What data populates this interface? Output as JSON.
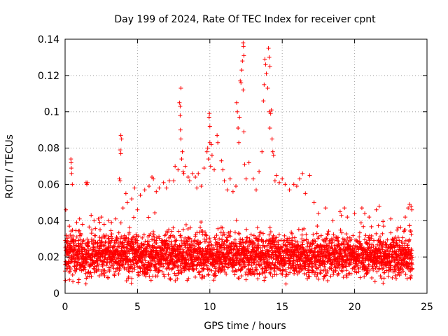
{
  "chart_data": {
    "type": "scatter",
    "title": "Day 199 of 2024, Rate Of TEC Index for receiver cpnt",
    "xlabel": "GPS time / hours",
    "ylabel": "ROTI / TECUs",
    "xlim": [
      0,
      25
    ],
    "ylim": [
      0,
      0.14
    ],
    "grid": true,
    "marker": "+",
    "xticks": [
      "0",
      "5",
      "10",
      "15",
      "20",
      "25"
    ],
    "yticks": [
      "0",
      "0.02",
      "0.04",
      "0.06",
      "0.08",
      "0.1",
      "0.12",
      "0.14"
    ],
    "series": [
      {
        "name": "ROTI",
        "color": "#ff0000",
        "points": [
          [
            0.05,
            0.046
          ],
          [
            0.15,
            0.029
          ],
          [
            0.2,
            0.031
          ],
          [
            0.4,
            0.074
          ],
          [
            0.42,
            0.072
          ],
          [
            0.43,
            0.069
          ],
          [
            0.45,
            0.066
          ],
          [
            0.5,
            0.06
          ],
          [
            0.8,
            0.039
          ],
          [
            1.0,
            0.041
          ],
          [
            1.2,
            0.038
          ],
          [
            1.45,
            0.061
          ],
          [
            1.5,
            0.06
          ],
          [
            1.55,
            0.061
          ],
          [
            1.8,
            0.043
          ],
          [
            2.0,
            0.04
          ],
          [
            2.3,
            0.041
          ],
          [
            2.5,
            0.042
          ],
          [
            2.7,
            0.038
          ],
          [
            3.0,
            0.04
          ],
          [
            3.2,
            0.039
          ],
          [
            3.5,
            0.041
          ],
          [
            3.75,
            0.063
          ],
          [
            3.8,
            0.062
          ],
          [
            3.85,
            0.087
          ],
          [
            3.9,
            0.085
          ],
          [
            3.8,
            0.079
          ],
          [
            3.85,
            0.077
          ],
          [
            4.0,
            0.047
          ],
          [
            4.2,
            0.055
          ],
          [
            4.3,
            0.05
          ],
          [
            4.6,
            0.052
          ],
          [
            4.8,
            0.058
          ],
          [
            5.0,
            0.046
          ],
          [
            5.2,
            0.054
          ],
          [
            5.5,
            0.057
          ],
          [
            5.8,
            0.059
          ],
          [
            6.0,
            0.064
          ],
          [
            6.1,
            0.063
          ],
          [
            6.3,
            0.056
          ],
          [
            6.5,
            0.058
          ],
          [
            6.8,
            0.061
          ],
          [
            7.0,
            0.058
          ],
          [
            7.2,
            0.062
          ],
          [
            7.5,
            0.062
          ],
          [
            7.6,
            0.07
          ],
          [
            7.8,
            0.068
          ],
          [
            7.9,
            0.105
          ],
          [
            7.95,
            0.103
          ],
          [
            7.95,
            0.098
          ],
          [
            8.0,
            0.113
          ],
          [
            7.97,
            0.09
          ],
          [
            8.0,
            0.085
          ],
          [
            8.05,
            0.074
          ],
          [
            8.1,
            0.078
          ],
          [
            8.15,
            0.067
          ],
          [
            8.2,
            0.066
          ],
          [
            8.3,
            0.07
          ],
          [
            8.5,
            0.064
          ],
          [
            8.6,
            0.062
          ],
          [
            8.8,
            0.066
          ],
          [
            9.0,
            0.064
          ],
          [
            9.1,
            0.058
          ],
          [
            9.2,
            0.066
          ],
          [
            9.4,
            0.059
          ],
          [
            9.6,
            0.069
          ],
          [
            9.8,
            0.078
          ],
          [
            9.85,
            0.08
          ],
          [
            9.9,
            0.074
          ],
          [
            9.95,
            0.097
          ],
          [
            9.97,
            0.099
          ],
          [
            10.0,
            0.092
          ],
          [
            10.0,
            0.083
          ],
          [
            10.05,
            0.07
          ],
          [
            10.1,
            0.082
          ],
          [
            10.15,
            0.076
          ],
          [
            10.3,
            0.068
          ],
          [
            10.5,
            0.087
          ],
          [
            10.55,
            0.083
          ],
          [
            10.8,
            0.073
          ],
          [
            10.9,
            0.068
          ],
          [
            11.0,
            0.062
          ],
          [
            11.2,
            0.057
          ],
          [
            11.4,
            0.063
          ],
          [
            11.6,
            0.056
          ],
          [
            11.8,
            0.059
          ],
          [
            11.85,
            0.105
          ],
          [
            11.9,
            0.1
          ],
          [
            11.95,
            0.091
          ],
          [
            12.0,
            0.083
          ],
          [
            12.05,
            0.097
          ],
          [
            12.1,
            0.117
          ],
          [
            12.15,
            0.116
          ],
          [
            12.2,
            0.123
          ],
          [
            12.25,
            0.128
          ],
          [
            12.3,
            0.138
          ],
          [
            12.32,
            0.136
          ],
          [
            12.35,
            0.131
          ],
          [
            12.3,
            0.112
          ],
          [
            12.35,
            0.089
          ],
          [
            12.4,
            0.071
          ],
          [
            12.5,
            0.063
          ],
          [
            12.7,
            0.072
          ],
          [
            13.0,
            0.063
          ],
          [
            13.2,
            0.057
          ],
          [
            13.4,
            0.067
          ],
          [
            13.6,
            0.078
          ],
          [
            13.7,
            0.106
          ],
          [
            13.75,
            0.115
          ],
          [
            13.8,
            0.129
          ],
          [
            13.9,
            0.121
          ],
          [
            13.85,
            0.126
          ],
          [
            14.0,
            0.113
          ],
          [
            14.05,
            0.135
          ],
          [
            14.1,
            0.13
          ],
          [
            14.15,
            0.125
          ],
          [
            14.1,
            0.1
          ],
          [
            14.15,
            0.091
          ],
          [
            14.2,
            0.099
          ],
          [
            14.25,
            0.101
          ],
          [
            14.3,
            0.085
          ],
          [
            14.35,
            0.078
          ],
          [
            14.4,
            0.076
          ],
          [
            14.5,
            0.062
          ],
          [
            14.6,
            0.065
          ],
          [
            14.8,
            0.061
          ],
          [
            15.0,
            0.063
          ],
          [
            15.2,
            0.06
          ],
          [
            15.5,
            0.057
          ],
          [
            15.8,
            0.06
          ],
          [
            16.0,
            0.059
          ],
          [
            16.2,
            0.063
          ],
          [
            16.4,
            0.066
          ],
          [
            16.6,
            0.055
          ],
          [
            16.9,
            0.065
          ],
          [
            17.2,
            0.05
          ],
          [
            17.5,
            0.044
          ],
          [
            18.0,
            0.047
          ],
          [
            18.5,
            0.04
          ],
          [
            19.0,
            0.045
          ],
          [
            19.3,
            0.047
          ],
          [
            19.5,
            0.042
          ],
          [
            20.0,
            0.044
          ],
          [
            20.5,
            0.047
          ],
          [
            20.7,
            0.044
          ],
          [
            21.0,
            0.042
          ],
          [
            21.5,
            0.046
          ],
          [
            21.7,
            0.048
          ],
          [
            22.0,
            0.037
          ],
          [
            22.5,
            0.041
          ],
          [
            23.0,
            0.036
          ],
          [
            23.5,
            0.042
          ],
          [
            23.7,
            0.047
          ],
          [
            23.8,
            0.049
          ],
          [
            23.9,
            0.048
          ],
          [
            23.95,
            0.046
          ]
        ],
        "baseline": {
          "range": [
            0,
            24
          ],
          "typical_min": 0.004,
          "typical_max": 0.035,
          "median": 0.018
        }
      }
    ]
  }
}
